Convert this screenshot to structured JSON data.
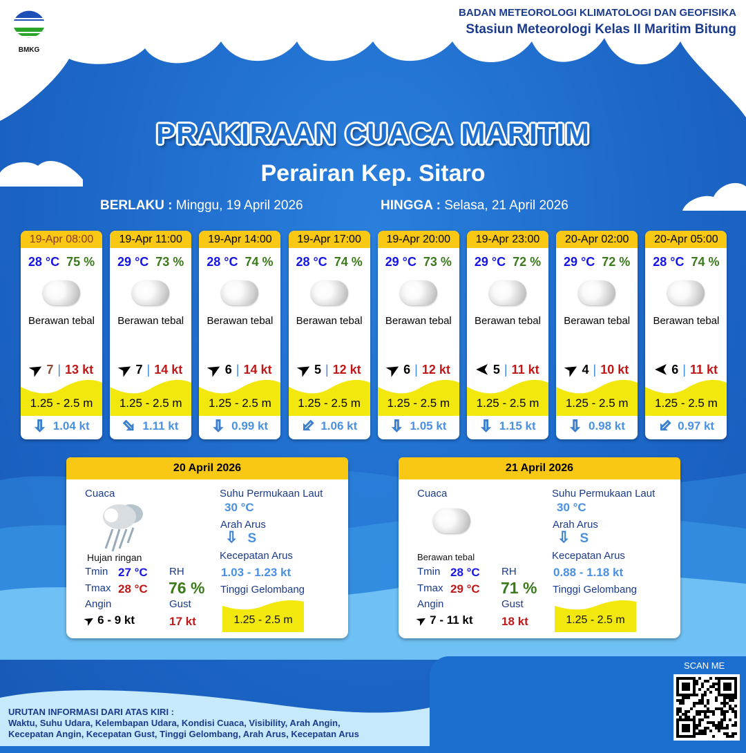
{
  "header": {
    "logo_text": "BMKG",
    "org": "BADAN METEOROLOGI KLIMATOLOGI DAN GEOFISIKA",
    "station": "Stasiun Meteorologi Kelas II Maritim Bitung"
  },
  "title": "PRAKIRAAN CUACA MARITIM",
  "area": "Perairan Kep. Sitaro",
  "validity": {
    "from_label": "BERLAKU :",
    "from": "Minggu, 19 April 2026",
    "to_label": "HINGGA :",
    "to": "Selasa, 21 April 2026"
  },
  "colors": {
    "header_yellow": "#f8c814",
    "wave_yellow": "#f2e80e",
    "temp": "#1414e6",
    "rh": "#3a7a1a",
    "gust": "#c01818",
    "current": "#4a90e0"
  },
  "forecasts": [
    {
      "time": "19-Apr 08:00",
      "temp": "28 °C",
      "rh": "75 %",
      "condition": "Berawan tebal",
      "wind_dir_icon": "arrow-northeast",
      "wind_dir_deg": -30,
      "wind": "7",
      "gust": "13 kt",
      "wave": "1.25 - 2.5 m",
      "current_dir_icon": "arrow-down",
      "current_dir_deg": 0,
      "current": "1.04 kt"
    },
    {
      "time": "19-Apr 11:00",
      "temp": "29 °C",
      "rh": "73 %",
      "condition": "Berawan tebal",
      "wind_dir_icon": "arrow-northeast",
      "wind_dir_deg": -30,
      "wind": "7",
      "gust": "14 kt",
      "wave": "1.25 - 2.5 m",
      "current_dir_icon": "arrow-southeast",
      "current_dir_deg": -45,
      "current": "1.11 kt"
    },
    {
      "time": "19-Apr 14:00",
      "temp": "28 °C",
      "rh": "74 %",
      "condition": "Berawan tebal",
      "wind_dir_icon": "arrow-northeast",
      "wind_dir_deg": -30,
      "wind": "6",
      "gust": "14 kt",
      "wave": "1.25 - 2.5 m",
      "current_dir_icon": "arrow-down",
      "current_dir_deg": 0,
      "current": "0.99 kt"
    },
    {
      "time": "19-Apr 17:00",
      "temp": "28 °C",
      "rh": "74 %",
      "condition": "Berawan tebal",
      "wind_dir_icon": "arrow-northeast",
      "wind_dir_deg": -30,
      "wind": "5",
      "gust": "12 kt",
      "wave": "1.25 - 2.5 m",
      "current_dir_icon": "arrow-southwest",
      "current_dir_deg": 45,
      "current": "1.06 kt"
    },
    {
      "time": "19-Apr 20:00",
      "temp": "29 °C",
      "rh": "73 %",
      "condition": "Berawan tebal",
      "wind_dir_icon": "arrow-northeast",
      "wind_dir_deg": -30,
      "wind": "6",
      "gust": "12 kt",
      "wave": "1.25 - 2.5 m",
      "current_dir_icon": "arrow-down",
      "current_dir_deg": 0,
      "current": "1.05 kt"
    },
    {
      "time": "19-Apr 23:00",
      "temp": "29 °C",
      "rh": "72 %",
      "condition": "Berawan tebal",
      "wind_dir_icon": "arrow-west",
      "wind_dir_deg": 180,
      "wind": "5",
      "gust": "11 kt",
      "wave": "1.25 - 2.5 m",
      "current_dir_icon": "arrow-down",
      "current_dir_deg": 0,
      "current": "1.15 kt"
    },
    {
      "time": "20-Apr 02:00",
      "temp": "29 °C",
      "rh": "72 %",
      "condition": "Berawan tebal",
      "wind_dir_icon": "arrow-northeast",
      "wind_dir_deg": -30,
      "wind": "4",
      "gust": "10 kt",
      "wave": "1.25 - 2.5 m",
      "current_dir_icon": "arrow-down",
      "current_dir_deg": 0,
      "current": "0.98 kt"
    },
    {
      "time": "20-Apr 05:00",
      "temp": "28 °C",
      "rh": "74 %",
      "condition": "Berawan tebal",
      "wind_dir_icon": "arrow-west",
      "wind_dir_deg": 180,
      "wind": "6",
      "gust": "11 kt",
      "wave": "1.25 - 2.5 m",
      "current_dir_icon": "arrow-southwest",
      "current_dir_deg": 45,
      "current": "0.97 kt"
    }
  ],
  "labels": {
    "weather": "Cuaca",
    "sst": "Suhu Permukaan Laut",
    "current_dir": "Arah Arus",
    "current_speed": "Kecepatan Arus",
    "wave": "Tinggi Gelombang",
    "tmin": "Tmin",
    "tmax": "Tmax",
    "rh": "RH",
    "wind": "Angin",
    "gust": "Gust"
  },
  "daily": [
    {
      "date": "20 April 2026",
      "condition": "Hujan ringan",
      "weather_icon": "rain-cloud",
      "tmin": "27 °C",
      "tmax": "28 °C",
      "rh": "76 %",
      "wind": "6  - 9 kt",
      "gust": "17 kt",
      "sst": "30 °C",
      "current_dir": "S",
      "current_speed": "1.03  - 1.23 kt",
      "wave": "1.25 - 2.5 m"
    },
    {
      "date": "21 April 2026",
      "condition": "Berawan tebal",
      "weather_icon": "cloud",
      "tmin": "28 °C",
      "tmax": "29 °C",
      "rh": "71 %",
      "wind": "7  - 11 kt",
      "gust": "18 kt",
      "sst": "30 °C",
      "current_dir": "S",
      "current_speed": "0.88  - 1.18 kt",
      "wave": "1.25 - 2.5 m"
    }
  ],
  "footer": {
    "heading": "URUTAN INFORMASI DARI ATAS KIRI :",
    "line1": "Waktu, Suhu Udara, Kelembapan Udara, Kondisi Cuaca, Visibility, Arah Angin,",
    "line2": "Kecepatan Angin, Kecepatan Gust, Tinggi Gelombang, Arah Arus, Kecepatan Arus"
  },
  "qr": {
    "label": "SCAN ME"
  }
}
